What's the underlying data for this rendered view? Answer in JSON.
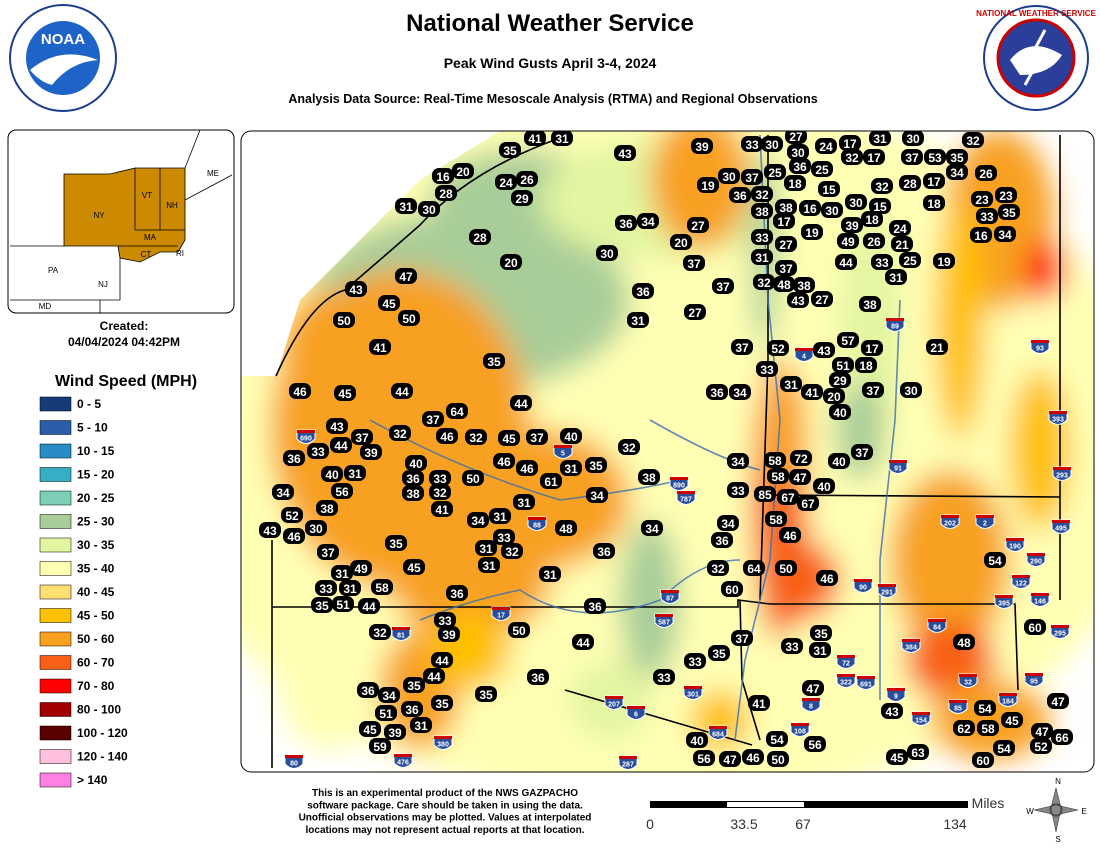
{
  "header": {
    "title": "National Weather Service",
    "subtitle": "Peak Wind Gusts April 3-4, 2024",
    "source": "Analysis Data Source: Real-Time Mesoscale Analysis (RTMA) and Regional Observations",
    "left_logo": "NOAA",
    "right_logo": "NATIONAL WEATHER SERVICE"
  },
  "inset": {
    "labels": [
      "NY",
      "VT",
      "NH",
      "MA",
      "CT",
      "RI",
      "PA",
      "NJ",
      "ME",
      "MD"
    ]
  },
  "created": {
    "label": "Created:",
    "date": "04/04/2024 04:42PM"
  },
  "legend": {
    "title": "Wind Speed (MPH)",
    "items": [
      {
        "label": "0 - 5",
        "color": "#173a78"
      },
      {
        "label": "5 - 10",
        "color": "#2a5ea8"
      },
      {
        "label": "10 - 15",
        "color": "#2a8cc4"
      },
      {
        "label": "15 - 20",
        "color": "#36afc6"
      },
      {
        "label": "20 - 25",
        "color": "#7ccfb6"
      },
      {
        "label": "25 - 30",
        "color": "#a9cd98"
      },
      {
        "label": "30 - 35",
        "color": "#e2f5a0"
      },
      {
        "label": "35 - 40",
        "color": "#ffffb4"
      },
      {
        "label": "40 - 45",
        "color": "#ffe070"
      },
      {
        "label": "45 - 50",
        "color": "#ffc000"
      },
      {
        "label": "50 - 60",
        "color": "#f8a020"
      },
      {
        "label": "60 - 70",
        "color": "#f86018"
      },
      {
        "label": "70 - 80",
        "color": "#ff0000"
      },
      {
        "label": "80 - 100",
        "color": "#a00000"
      },
      {
        "label": "100 - 120",
        "color": "#5a0000"
      },
      {
        "label": "120 - 140",
        "color": "#ffc0e0"
      },
      {
        "label": "> 140",
        "color": "#ff80e0"
      }
    ]
  },
  "stations": [
    35,
    41,
    31,
    43,
    39,
    33,
    30,
    27,
    30,
    24,
    17,
    31,
    30,
    32,
    32,
    17,
    37,
    53,
    35,
    36,
    25,
    26,
    16,
    20,
    24,
    26,
    29,
    28,
    31,
    30,
    19,
    30,
    37,
    25,
    18,
    15,
    32,
    28,
    17,
    34,
    23,
    23,
    36,
    32,
    18,
    30,
    15,
    38,
    38,
    16,
    30,
    18,
    33,
    35,
    17,
    19,
    39,
    24,
    27,
    36,
    34,
    16,
    34,
    28,
    33,
    27,
    49,
    26,
    21,
    30,
    20,
    20,
    31,
    37,
    37,
    44,
    33,
    25,
    19,
    47,
    31,
    32,
    48,
    38,
    37,
    43,
    36,
    45,
    43,
    27,
    38,
    50,
    50,
    31,
    27,
    57,
    41,
    37,
    52,
    43,
    17,
    21,
    35,
    51,
    18,
    33,
    29,
    46,
    45,
    44,
    36,
    34,
    31,
    41,
    20,
    37,
    30,
    44,
    40,
    43,
    37,
    64,
    32,
    37,
    33,
    44,
    39,
    46,
    32,
    45,
    37,
    40,
    32,
    37,
    36,
    40,
    46,
    46,
    31,
    35,
    38,
    34,
    58,
    72,
    40,
    40,
    31,
    33,
    50,
    61,
    58,
    47,
    36,
    34,
    56,
    38,
    32,
    34,
    33,
    85,
    67,
    40,
    67,
    31,
    52,
    38,
    41,
    34,
    31,
    58,
    30,
    43,
    46,
    33,
    48,
    34,
    34,
    54,
    46,
    36,
    35,
    31,
    32,
    36,
    37,
    32,
    64,
    50,
    46,
    31,
    49,
    45,
    31,
    31,
    33,
    31,
    58,
    36,
    60,
    35,
    51,
    44,
    36,
    33,
    32,
    39,
    50,
    37,
    35,
    33,
    31,
    48,
    60,
    44,
    44,
    35,
    33,
    36,
    33,
    44,
    35,
    36,
    34,
    47,
    35,
    35,
    51,
    36,
    41,
    43,
    54,
    47,
    45,
    45,
    39,
    31,
    62,
    58,
    40,
    56,
    54,
    47,
    66,
    52,
    54,
    59,
    56,
    47,
    46,
    50,
    45,
    63,
    60
  ],
  "shields": [
    "690",
    "81",
    "88",
    "5",
    "17",
    "87",
    "587",
    "890",
    "787",
    "4",
    "89",
    "91",
    "93",
    "393",
    "293",
    "495",
    "202",
    "2",
    "190",
    "290",
    "122",
    "146",
    "395",
    "295",
    "84",
    "384",
    "90",
    "291",
    "691",
    "72",
    "322",
    "9",
    "32",
    "154",
    "85",
    "184",
    "95",
    "684",
    "287",
    "380",
    "476",
    "80",
    "207",
    "6",
    "301",
    "8",
    "108"
  ],
  "disclaimer": [
    "This is an experimental product of the NWS GAZPACHO",
    "software package. Care should be taken in using the data.",
    "Unofficial observations may be plotted. Values at interpolated",
    "locations may not represent actual reports at that location."
  ],
  "scale": {
    "unit": "Miles",
    "ticks": [
      "0",
      "33.5",
      "67",
      "134"
    ]
  },
  "compass": [
    "N",
    "E",
    "S",
    "W"
  ]
}
